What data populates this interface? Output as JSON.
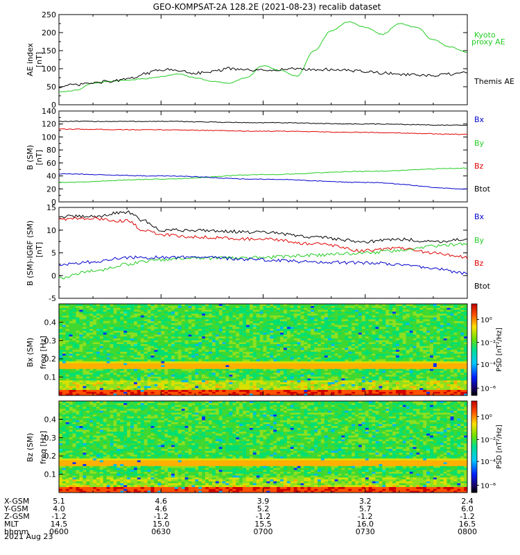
{
  "title": "GEO-KOMPSAT-2A 128.2E (2021-08-23) recalib dataset",
  "colors": {
    "black": "#000000",
    "red": "#e00000",
    "green": "#22cc22",
    "blue": "#0000cc",
    "kyoto": "#22cc22"
  },
  "chart_data": [
    {
      "type": "line",
      "panel": "ae",
      "ylabel": "AE index [nT]",
      "ylim": [
        0,
        250
      ],
      "yticks": [
        "0",
        "50",
        "100",
        "150",
        "200",
        "250"
      ],
      "x_range_min": [
        0,
        120
      ],
      "series": [
        {
          "name": "Kyoto proxy AE",
          "color": "#22cc22",
          "x": [
            0,
            5,
            10,
            15,
            20,
            25,
            30,
            35,
            40,
            45,
            50,
            55,
            60,
            65,
            70,
            75,
            80,
            85,
            90,
            95,
            100,
            105,
            110,
            115,
            120
          ],
          "values": [
            35,
            40,
            60,
            65,
            68,
            72,
            78,
            85,
            75,
            65,
            60,
            75,
            108,
            95,
            80,
            150,
            205,
            230,
            215,
            195,
            225,
            215,
            180,
            160,
            145
          ]
        },
        {
          "name": "Themis AE",
          "color": "#000000",
          "x": [
            0,
            5,
            10,
            15,
            20,
            25,
            30,
            35,
            40,
            45,
            50,
            55,
            60,
            65,
            70,
            75,
            80,
            85,
            90,
            95,
            100,
            105,
            110,
            115,
            120
          ],
          "values": [
            50,
            55,
            60,
            65,
            70,
            85,
            98,
            95,
            88,
            92,
            100,
            96,
            95,
            98,
            100,
            97,
            98,
            95,
            92,
            88,
            85,
            82,
            80,
            85,
            88
          ]
        }
      ]
    },
    {
      "type": "line",
      "panel": "b",
      "ylabel": "B (SM) [nT]",
      "ylim": [
        0,
        140
      ],
      "yticks": [
        "0",
        "20",
        "40",
        "60",
        "80",
        "100",
        "120",
        "140"
      ],
      "series": [
        {
          "name": "Bx",
          "color": "#000000",
          "x": [
            0,
            30,
            60,
            90,
            120
          ],
          "values": [
            124,
            124,
            122,
            120,
            118
          ]
        },
        {
          "name": "By",
          "color": "#e00000",
          "x": [
            0,
            30,
            60,
            90,
            120
          ],
          "values": [
            112,
            111,
            109,
            107,
            104
          ]
        },
        {
          "name": "Bz",
          "color": "#22cc22",
          "x": [
            0,
            30,
            60,
            90,
            120
          ],
          "values": [
            30,
            35,
            42,
            47,
            52
          ]
        },
        {
          "name": "Btot",
          "color": "#0000cc",
          "x": [
            0,
            30,
            60,
            90,
            120
          ],
          "values": [
            43,
            40,
            35,
            30,
            20
          ]
        }
      ]
    },
    {
      "type": "line",
      "panel": "db",
      "ylabel": "B (SM)-IGRF (SM) [nT]",
      "ylim": [
        -5,
        15
      ],
      "yticks": [
        "-5",
        "0",
        "5",
        "10",
        "15"
      ],
      "series": [
        {
          "name": "Bx",
          "color": "#000000",
          "x": [
            0,
            10,
            20,
            25,
            30,
            40,
            60,
            75,
            90,
            100,
            110,
            120
          ],
          "values": [
            13,
            13,
            14,
            12,
            10,
            10,
            9.5,
            8.5,
            7.5,
            8,
            7.5,
            8
          ]
        },
        {
          "name": "By",
          "color": "#e00000",
          "x": [
            0,
            10,
            20,
            25,
            30,
            40,
            60,
            75,
            90,
            100,
            110,
            120
          ],
          "values": [
            12.5,
            12.5,
            12,
            10,
            9,
            8.5,
            8,
            7,
            5.5,
            6,
            5,
            4
          ]
        },
        {
          "name": "Bz",
          "color": "#22cc22",
          "x": [
            0,
            10,
            20,
            25,
            30,
            40,
            60,
            75,
            90,
            100,
            110,
            120
          ],
          "values": [
            -0.5,
            1,
            2.5,
            3,
            3.5,
            3.8,
            4,
            4.5,
            5,
            5.5,
            6.5,
            7
          ]
        },
        {
          "name": "Btot",
          "color": "#0000cc",
          "x": [
            0,
            10,
            20,
            25,
            30,
            40,
            60,
            75,
            90,
            100,
            110,
            120
          ],
          "values": [
            2.5,
            3,
            4,
            4,
            4,
            4,
            3.5,
            3,
            2.8,
            2.5,
            1.5,
            0.5
          ]
        }
      ]
    },
    {
      "type": "heatmap",
      "panel": "bx-spec",
      "ylabel": "Bx (SM) freq [Hz]",
      "yticks": [
        "0.1",
        "0.2",
        "0.3",
        "0.4"
      ],
      "colorbar_label": "PSD [nT²/Hz]",
      "colorbar_ticks": [
        "10⁰",
        "10⁻²",
        "10⁻⁴",
        "10⁻⁶"
      ]
    },
    {
      "type": "heatmap",
      "panel": "bz-spec",
      "ylabel": "Bz (SM) freq [Hz]",
      "yticks": [
        "0.1",
        "0.2",
        "0.3",
        "0.4"
      ],
      "colorbar_label": "PSD [nT²/Hz]",
      "colorbar_ticks": [
        "10⁰",
        "10⁻²",
        "10⁻⁴",
        "10⁻⁶"
      ]
    }
  ],
  "labels": {
    "ae_ylabel1": "AE index",
    "ae_ylabel2": "[nT]",
    "b_ylabel1": "B (SM)",
    "b_ylabel2": "[nT]",
    "db_ylabel1": "B (SM)-IGRF (SM)",
    "db_ylabel2": "[nT]",
    "bx_ylabel1": "Bx (SM)",
    "bx_ylabel2": "freq [Hz]",
    "bz_ylabel1": "Bz (SM)",
    "bz_ylabel2": "freq [Hz]",
    "kyoto1": "Kyoto",
    "kyoto2": "proxy AE",
    "themis": "Themis AE",
    "bx": "Bx",
    "by": "By",
    "bz": "Bz",
    "btot": "Btot",
    "psd": "PSD [nT²/Hz]"
  },
  "ephemeris": {
    "rows": [
      {
        "label": "X-GSM",
        "values": [
          "5.1",
          "4.6",
          "3.9",
          "3.2",
          "2.4"
        ]
      },
      {
        "label": "Y-GSM",
        "values": [
          "4.0",
          "4.6",
          "5.2",
          "5.7",
          "6.0"
        ]
      },
      {
        "label": "Z-GSM",
        "values": [
          "-1.2",
          "-1.2",
          "-1.2",
          "-1.2",
          "-1.2"
        ]
      },
      {
        "label": "MLT",
        "values": [
          "14.5",
          "15.0",
          "15.5",
          "16.0",
          "16.5"
        ]
      },
      {
        "label": "hhmm",
        "values": [
          "0600",
          "0630",
          "0700",
          "0730",
          "0800"
        ]
      }
    ],
    "date": "2021 Aug 23"
  }
}
